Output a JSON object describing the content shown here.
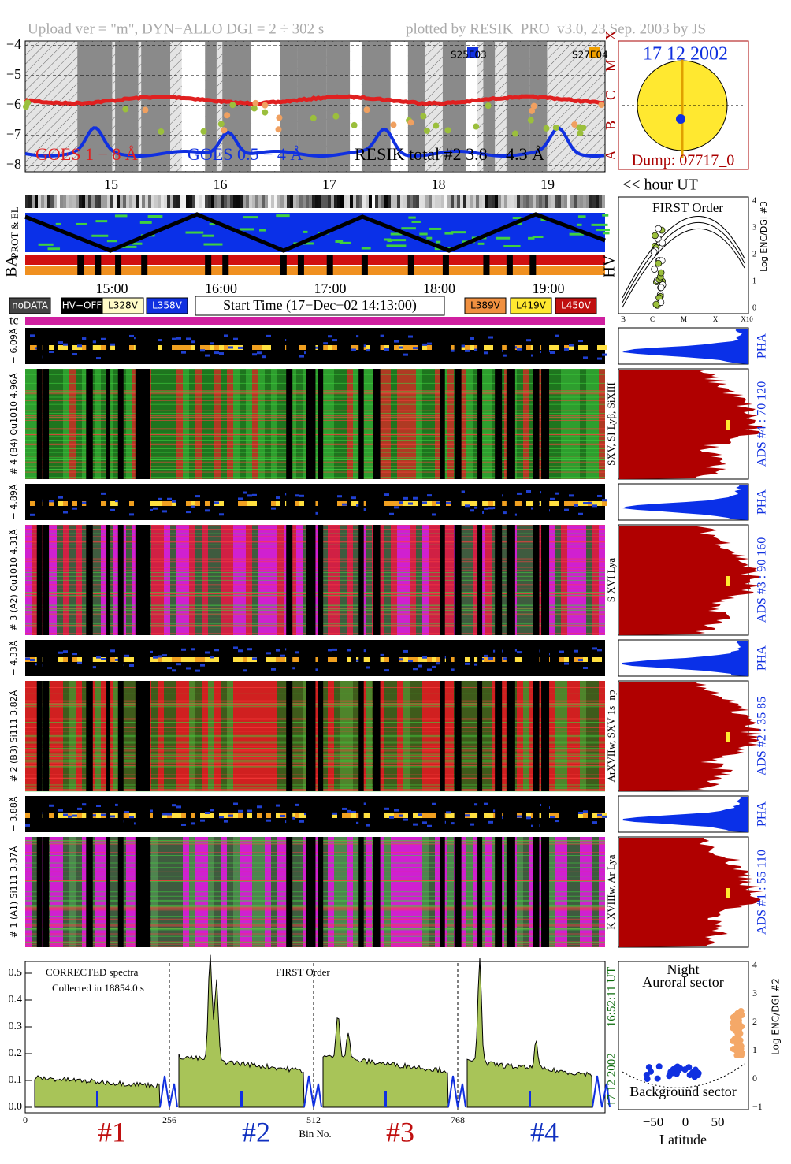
{
  "header": {
    "upload": "Upload ver = \"m\", DYN−ALLO DGI =  2 ÷ 302 s",
    "plotted": "plotted by RESIK_PRO_v3.0, 23 Sep. 2003 by JS"
  },
  "goes_panel": {
    "yticks": [
      "−4",
      "−5",
      "−6",
      "−7",
      "−8"
    ],
    "classes": [
      "X",
      "M",
      "C",
      "B",
      "A"
    ],
    "legend": [
      "GOES 1 − 8 Å",
      "GOES 0.5 − 4 Å",
      "RESIK total #2  3.8 − 4.3 Å"
    ],
    "regions": [
      "S25E03",
      "S27E04"
    ]
  },
  "sun_panel": {
    "date": "17 12 2002",
    "dump": "Dump: 07717_0"
  },
  "hour_axis": {
    "ticks": [
      "15",
      "16",
      "17",
      "18",
      "19"
    ],
    "unit": "<< hour UT"
  },
  "status_panel": {
    "prot_label": "PROT & EL",
    "ba_label": "BA",
    "hv_label": "HV"
  },
  "time_axis": {
    "ticks": [
      "15:00",
      "16:00",
      "17:00",
      "18:00",
      "19:00"
    ]
  },
  "legend": {
    "left": [
      "noDATA",
      "HV−OFF",
      "L328V",
      "L358V"
    ],
    "start_time": "Start Time (17−Dec−02 14:13:00)",
    "right": [
      "L389V",
      "L419V",
      "L450V"
    ]
  },
  "tc_label": "tc",
  "order_panel": {
    "title": "FIRST Order",
    "axis_label": "Log ENC/DGI #3",
    "yticks": [
      "0",
      "1",
      "2",
      "3",
      "4"
    ],
    "xticks": [
      "B",
      "C",
      "M",
      "X",
      "X10"
    ]
  },
  "channels": [
    {
      "range_label": "− 6.09Å",
      "label": "# 4 (B4) Qu1010 4.96Å",
      "pha": "PHA",
      "ads": "ADS #4 :   70 120",
      "lines": "SXV, SI Lyβ, SiXIII"
    },
    {
      "range_label": "− 4.89Å",
      "label": "# 3 (A2) Qu1010 4.31Å",
      "pha": "PHA",
      "ads": "ADS #3 :   90 160",
      "lines": "S XVI Lya"
    },
    {
      "range_label": "− 4.33Å",
      "label": "# 2 (B3) Si111 3.82Å",
      "pha": "PHA",
      "ads": "ADS #2 :   35  85",
      "lines": "ArXVIIw, SXV 1s−np"
    },
    {
      "range_label": "− 3.88Å",
      "label": "# 1 (A1) Si111 3.37Å",
      "pha": "PHA",
      "ads": "ADS #1 :   55 110",
      "lines": "K XVIIIw, Ar Lya"
    }
  ],
  "spectrum": {
    "yticks": [
      "0.0",
      "0.1",
      "0.2",
      "0.3",
      "0.4",
      "0.5"
    ],
    "xticks": [
      "0",
      "256",
      "512",
      "768"
    ],
    "xlabel": "Bin No.",
    "note1": "CORRECTED spectra",
    "note2": "Collected in 18854.0 s",
    "order": "FIRST Order",
    "segments": [
      "#1",
      "#2",
      "#3",
      "#4"
    ],
    "date": "17 12 2002",
    "time": "16:52:11 UT"
  },
  "latitude_panel": {
    "title": "Night",
    "top_sector": "Auroral sector",
    "bottom_sector": "Background sector",
    "axis_label": "Log ENC/DGI #2",
    "yticks": [
      "−1",
      "0",
      "1",
      "2",
      "3",
      "4"
    ],
    "xticks": [
      "−50",
      "0",
      "50"
    ],
    "xlabel": "Latitude"
  }
}
